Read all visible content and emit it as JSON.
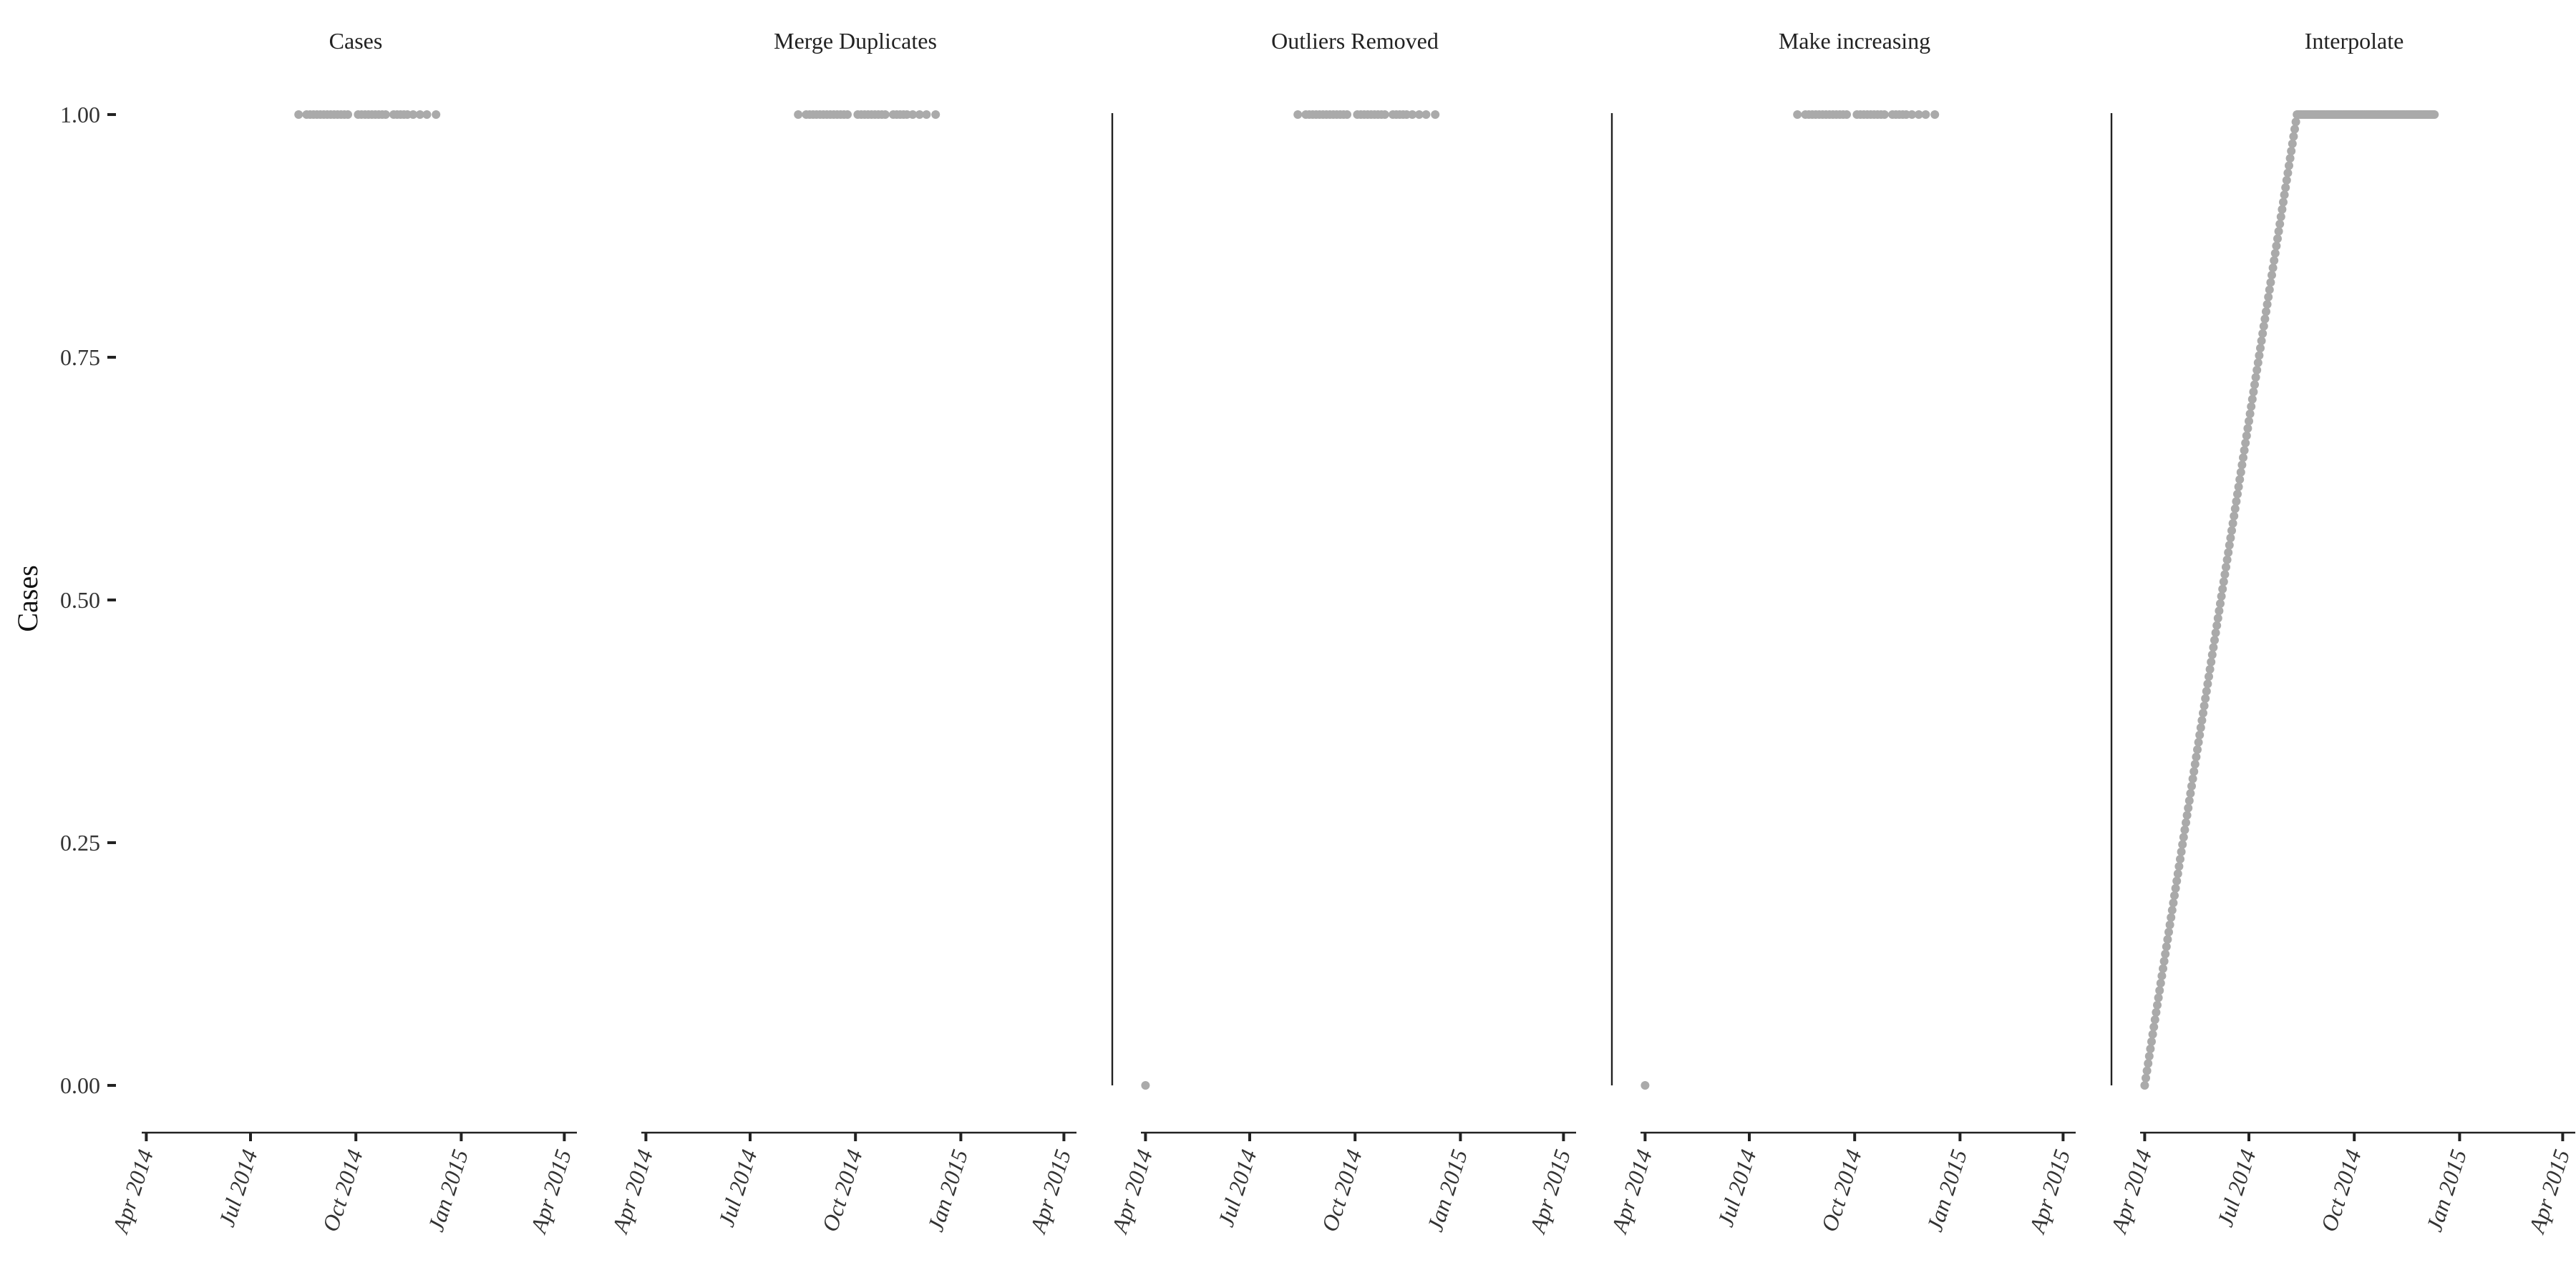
{
  "colors": {
    "point": "#aaaaaa",
    "axis": "#222222",
    "background": "#ffffff"
  },
  "chart_data": {
    "type": "scatter",
    "ylabel": "Cases",
    "ylim": [
      0,
      1
    ],
    "y_ticks": [
      "0.00",
      "0.25",
      "0.50",
      "0.75",
      "1.00"
    ],
    "xlim": [
      "2014-03-28",
      "2015-04-12"
    ],
    "x_ticks": [
      {
        "date": "2014-04-01",
        "label": "Apr 2014"
      },
      {
        "date": "2014-07-01",
        "label": "Jul 2014"
      },
      {
        "date": "2014-10-01",
        "label": "Oct 2014"
      },
      {
        "date": "2015-01-01",
        "label": "Jan 2015"
      },
      {
        "date": "2015-04-01",
        "label": "Apr 2015"
      }
    ],
    "facets": [
      {
        "title": "Cases",
        "y_axis_line": false,
        "points": [
          [
            "2014-08-12",
            1
          ],
          [
            "2014-08-19",
            1
          ],
          [
            "2014-08-22",
            1
          ],
          [
            "2014-08-25",
            1
          ],
          [
            "2014-08-28",
            1
          ],
          [
            "2014-08-31",
            1
          ],
          [
            "2014-09-03",
            1
          ],
          [
            "2014-09-06",
            1
          ],
          [
            "2014-09-09",
            1
          ],
          [
            "2014-09-12",
            1
          ],
          [
            "2014-09-15",
            1
          ],
          [
            "2014-09-18",
            1
          ],
          [
            "2014-09-21",
            1
          ],
          [
            "2014-09-24",
            1
          ],
          [
            "2014-10-03",
            1
          ],
          [
            "2014-10-06",
            1
          ],
          [
            "2014-10-09",
            1
          ],
          [
            "2014-10-12",
            1
          ],
          [
            "2014-10-15",
            1
          ],
          [
            "2014-10-18",
            1
          ],
          [
            "2014-10-21",
            1
          ],
          [
            "2014-10-24",
            1
          ],
          [
            "2014-10-27",
            1
          ],
          [
            "2014-11-03",
            1
          ],
          [
            "2014-11-06",
            1
          ],
          [
            "2014-11-09",
            1
          ],
          [
            "2014-11-12",
            1
          ],
          [
            "2014-11-15",
            1
          ],
          [
            "2014-11-20",
            1
          ],
          [
            "2014-11-26",
            1
          ],
          [
            "2014-12-02",
            1
          ],
          [
            "2014-12-10",
            1
          ]
        ]
      },
      {
        "title": "Merge Duplicates",
        "y_axis_line": false,
        "points": [
          [
            "2014-08-12",
            1
          ],
          [
            "2014-08-19",
            1
          ],
          [
            "2014-08-22",
            1
          ],
          [
            "2014-08-25",
            1
          ],
          [
            "2014-08-28",
            1
          ],
          [
            "2014-08-31",
            1
          ],
          [
            "2014-09-03",
            1
          ],
          [
            "2014-09-06",
            1
          ],
          [
            "2014-09-09",
            1
          ],
          [
            "2014-09-12",
            1
          ],
          [
            "2014-09-15",
            1
          ],
          [
            "2014-09-18",
            1
          ],
          [
            "2014-09-21",
            1
          ],
          [
            "2014-09-24",
            1
          ],
          [
            "2014-10-03",
            1
          ],
          [
            "2014-10-06",
            1
          ],
          [
            "2014-10-09",
            1
          ],
          [
            "2014-10-12",
            1
          ],
          [
            "2014-10-15",
            1
          ],
          [
            "2014-10-18",
            1
          ],
          [
            "2014-10-21",
            1
          ],
          [
            "2014-10-24",
            1
          ],
          [
            "2014-10-27",
            1
          ],
          [
            "2014-11-03",
            1
          ],
          [
            "2014-11-06",
            1
          ],
          [
            "2014-11-09",
            1
          ],
          [
            "2014-11-12",
            1
          ],
          [
            "2014-11-15",
            1
          ],
          [
            "2014-11-20",
            1
          ],
          [
            "2014-11-26",
            1
          ],
          [
            "2014-12-02",
            1
          ],
          [
            "2014-12-10",
            1
          ]
        ]
      },
      {
        "title": "Outliers Removed",
        "y_axis_line": true,
        "points": [
          [
            "2014-04-01",
            0
          ],
          [
            "2014-08-12",
            1
          ],
          [
            "2014-08-19",
            1
          ],
          [
            "2014-08-22",
            1
          ],
          [
            "2014-08-25",
            1
          ],
          [
            "2014-08-28",
            1
          ],
          [
            "2014-08-31",
            1
          ],
          [
            "2014-09-03",
            1
          ],
          [
            "2014-09-06",
            1
          ],
          [
            "2014-09-09",
            1
          ],
          [
            "2014-09-12",
            1
          ],
          [
            "2014-09-15",
            1
          ],
          [
            "2014-09-18",
            1
          ],
          [
            "2014-09-21",
            1
          ],
          [
            "2014-09-24",
            1
          ],
          [
            "2014-10-03",
            1
          ],
          [
            "2014-10-06",
            1
          ],
          [
            "2014-10-09",
            1
          ],
          [
            "2014-10-12",
            1
          ],
          [
            "2014-10-15",
            1
          ],
          [
            "2014-10-18",
            1
          ],
          [
            "2014-10-21",
            1
          ],
          [
            "2014-10-24",
            1
          ],
          [
            "2014-10-27",
            1
          ],
          [
            "2014-11-03",
            1
          ],
          [
            "2014-11-06",
            1
          ],
          [
            "2014-11-09",
            1
          ],
          [
            "2014-11-12",
            1
          ],
          [
            "2014-11-15",
            1
          ],
          [
            "2014-11-20",
            1
          ],
          [
            "2014-11-26",
            1
          ],
          [
            "2014-12-02",
            1
          ],
          [
            "2014-12-10",
            1
          ]
        ]
      },
      {
        "title": "Make increasing",
        "y_axis_line": true,
        "points": [
          [
            "2014-04-01",
            0
          ],
          [
            "2014-08-12",
            1
          ],
          [
            "2014-08-19",
            1
          ],
          [
            "2014-08-22",
            1
          ],
          [
            "2014-08-25",
            1
          ],
          [
            "2014-08-28",
            1
          ],
          [
            "2014-08-31",
            1
          ],
          [
            "2014-09-03",
            1
          ],
          [
            "2014-09-06",
            1
          ],
          [
            "2014-09-09",
            1
          ],
          [
            "2014-09-12",
            1
          ],
          [
            "2014-09-15",
            1
          ],
          [
            "2014-09-18",
            1
          ],
          [
            "2014-09-21",
            1
          ],
          [
            "2014-09-24",
            1
          ],
          [
            "2014-10-03",
            1
          ],
          [
            "2014-10-06",
            1
          ],
          [
            "2014-10-09",
            1
          ],
          [
            "2014-10-12",
            1
          ],
          [
            "2014-10-15",
            1
          ],
          [
            "2014-10-18",
            1
          ],
          [
            "2014-10-21",
            1
          ],
          [
            "2014-10-24",
            1
          ],
          [
            "2014-10-27",
            1
          ],
          [
            "2014-11-03",
            1
          ],
          [
            "2014-11-06",
            1
          ],
          [
            "2014-11-09",
            1
          ],
          [
            "2014-11-12",
            1
          ],
          [
            "2014-11-15",
            1
          ],
          [
            "2014-11-20",
            1
          ],
          [
            "2014-11-26",
            1
          ],
          [
            "2014-12-02",
            1
          ],
          [
            "2014-12-10",
            1
          ]
        ]
      },
      {
        "title": "Interpolate",
        "y_axis_line": true,
        "points": [],
        "interpolated_daily": {
          "ramp_start": "2014-04-01",
          "ramp_end": "2014-08-12",
          "plateau_end": "2014-12-10"
        }
      }
    ]
  }
}
